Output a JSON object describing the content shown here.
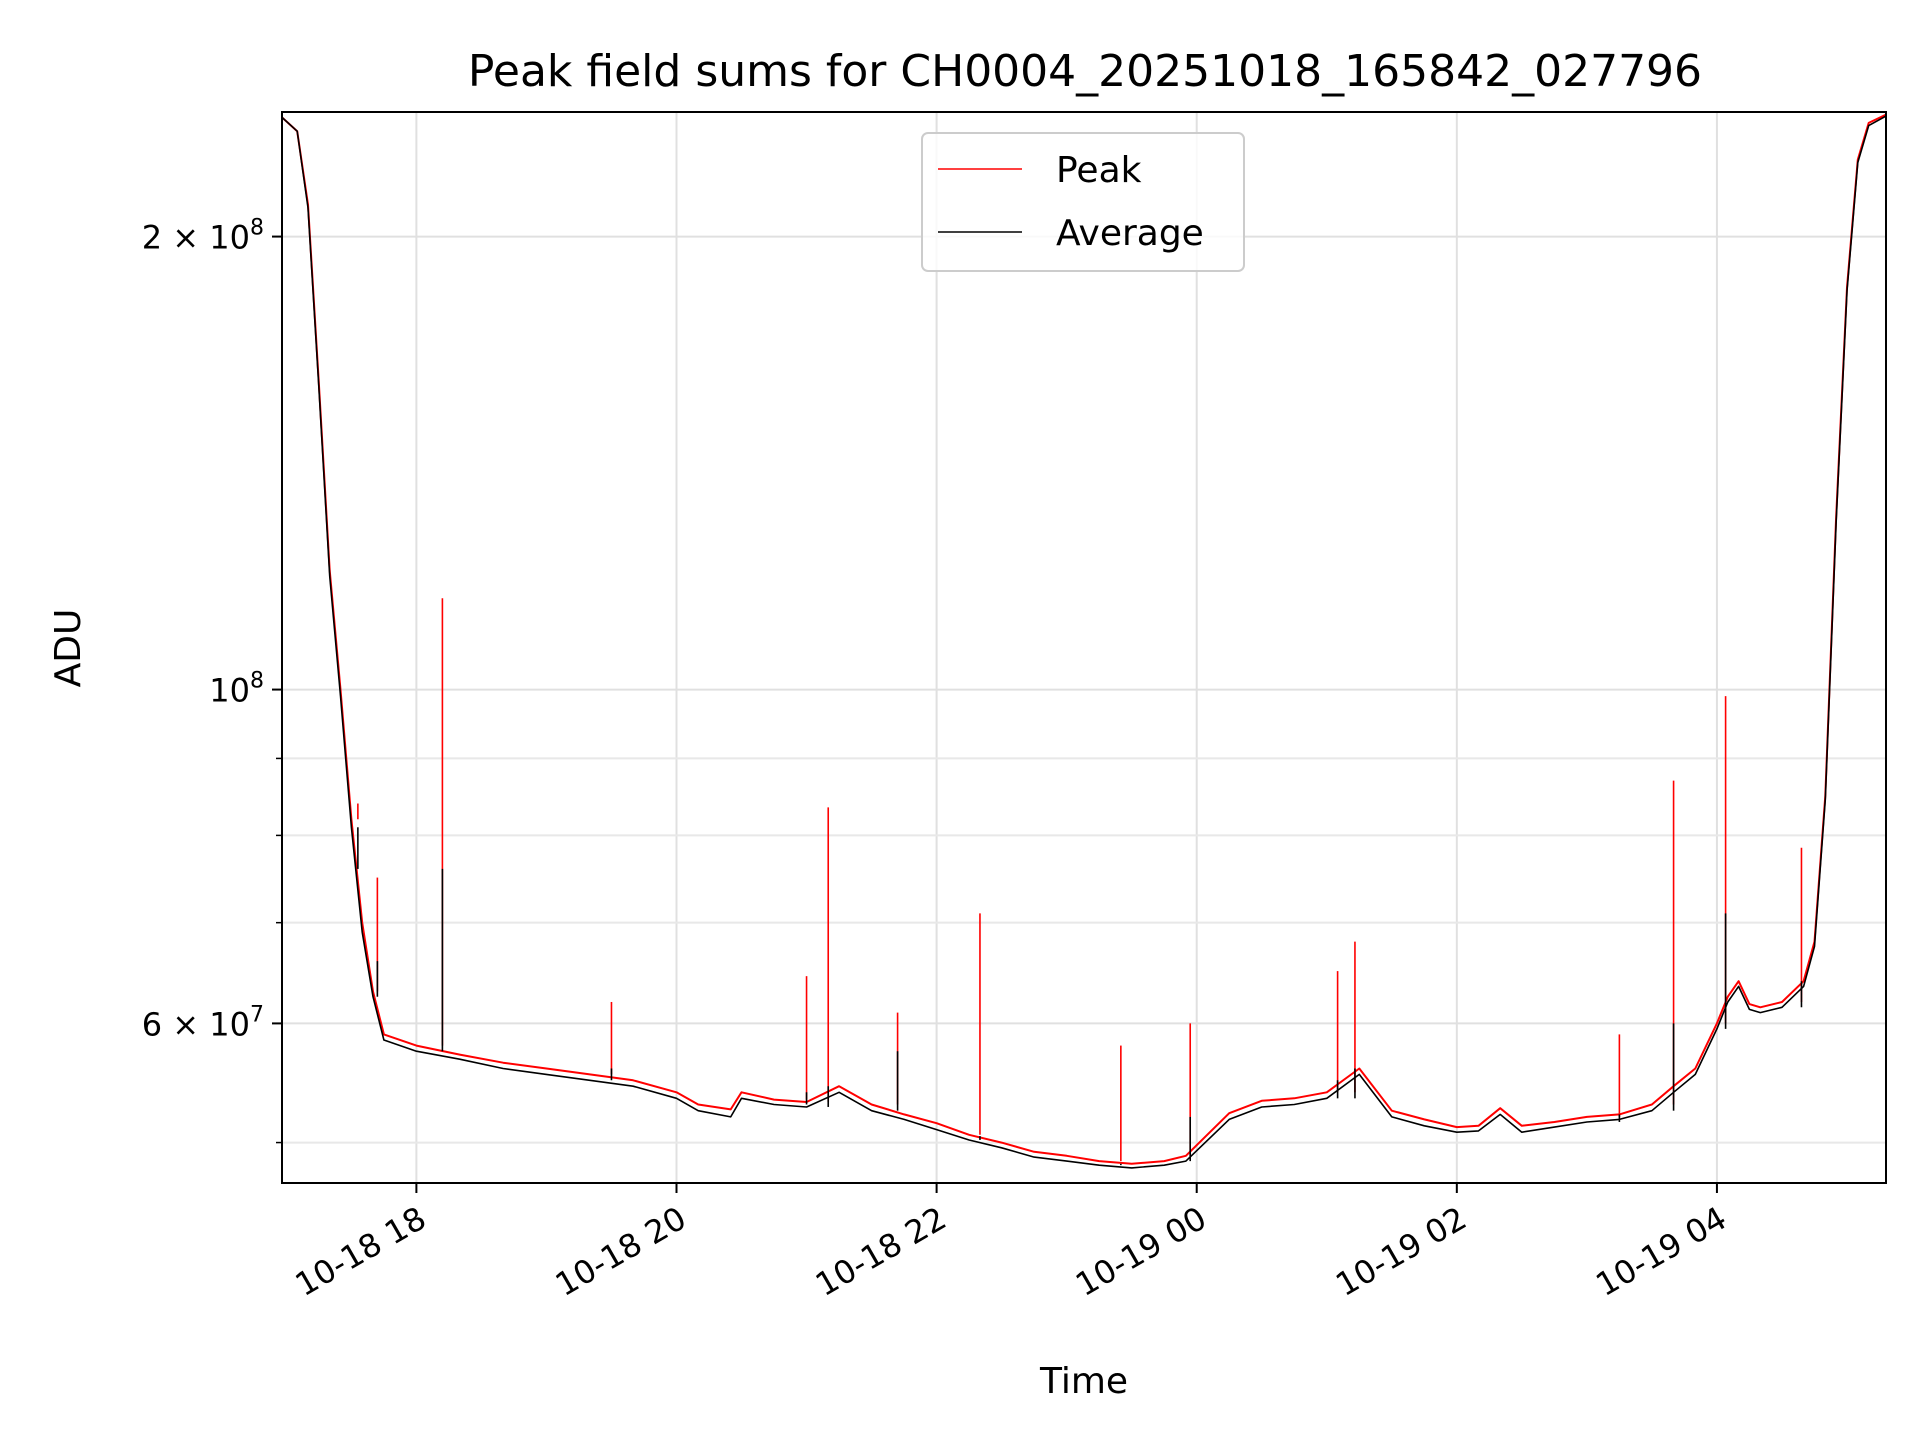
{
  "chart_data": {
    "type": "line",
    "title": "Peak field sums for CH0004_20251018_165842_027796",
    "xlabel": "Time",
    "ylabel": "ADU",
    "yscale": "log",
    "ylim": [
      47000000,
      242000000
    ],
    "xlim": [
      "2025-10-18 16:58",
      "2025-10-19 05:18"
    ],
    "grid": true,
    "legend_position": "top-center",
    "x_ticks": [
      {
        "value": "2025-10-18 18:00",
        "label": "10-18 18"
      },
      {
        "value": "2025-10-18 20:00",
        "label": "10-18 20"
      },
      {
        "value": "2025-10-18 22:00",
        "label": "10-18 22"
      },
      {
        "value": "2025-10-19 00:00",
        "label": "10-19 00"
      },
      {
        "value": "2025-10-19 02:00",
        "label": "10-19 02"
      },
      {
        "value": "2025-10-19 04:00",
        "label": "10-19 04"
      }
    ],
    "y_ticks": [
      {
        "value": 200000000,
        "mantissa": "2 × 10",
        "exponent": "8"
      },
      {
        "value": 100000000,
        "mantissa": "10",
        "exponent": "8"
      },
      {
        "value": 60000000,
        "mantissa": "6 × 10",
        "exponent": "7"
      }
    ],
    "y_minor_ticks": [
      50000000,
      70000000,
      80000000,
      90000000
    ],
    "series": [
      {
        "name": "Peak",
        "color": "#ff0000",
        "x": [
          "2025-10-18 16:58",
          "2025-10-18 17:05",
          "2025-10-18 17:10",
          "2025-10-18 17:15",
          "2025-10-18 17:20",
          "2025-10-18 17:25",
          "2025-10-18 17:30",
          "2025-10-18 17:35",
          "2025-10-18 17:40",
          "2025-10-18 17:45",
          "2025-10-18 18:00",
          "2025-10-18 18:20",
          "2025-10-18 18:40",
          "2025-10-18 19:00",
          "2025-10-18 19:20",
          "2025-10-18 19:40",
          "2025-10-18 20:00",
          "2025-10-18 20:10",
          "2025-10-18 20:25",
          "2025-10-18 20:30",
          "2025-10-18 20:45",
          "2025-10-18 21:00",
          "2025-10-18 21:15",
          "2025-10-18 21:30",
          "2025-10-18 21:45",
          "2025-10-18 22:00",
          "2025-10-18 22:15",
          "2025-10-18 22:30",
          "2025-10-18 22:45",
          "2025-10-18 23:00",
          "2025-10-18 23:15",
          "2025-10-18 23:30",
          "2025-10-18 23:45",
          "2025-10-18 23:55",
          "2025-10-19 00:15",
          "2025-10-19 00:30",
          "2025-10-19 00:45",
          "2025-10-19 01:00",
          "2025-10-19 01:15",
          "2025-10-19 01:30",
          "2025-10-19 01:45",
          "2025-10-19 02:00",
          "2025-10-19 02:10",
          "2025-10-19 02:20",
          "2025-10-19 02:30",
          "2025-10-19 02:45",
          "2025-10-19 03:00",
          "2025-10-19 03:15",
          "2025-10-19 03:30",
          "2025-10-19 03:40",
          "2025-10-19 03:50",
          "2025-10-19 04:00",
          "2025-10-19 04:05",
          "2025-10-19 04:10",
          "2025-10-19 04:15",
          "2025-10-19 04:20",
          "2025-10-19 04:30",
          "2025-10-19 04:40",
          "2025-10-19 04:45",
          "2025-10-19 04:50",
          "2025-10-19 04:55",
          "2025-10-19 05:00",
          "2025-10-19 05:05",
          "2025-10-19 05:10",
          "2025-10-19 05:18"
        ],
        "y": [
          240000000,
          235000000,
          210000000,
          160000000,
          120000000,
          100000000,
          82000000,
          70000000,
          63000000,
          59000000,
          58000000,
          57200000,
          56500000,
          56000000,
          55500000,
          55000000,
          54000000,
          53000000,
          52600000,
          54000000,
          53400000,
          53200000,
          54500000,
          53000000,
          52200000,
          51500000,
          50600000,
          50000000,
          49300000,
          49000000,
          48600000,
          48400000,
          48600000,
          49000000,
          52300000,
          53300000,
          53500000,
          54000000,
          56000000,
          52500000,
          51800000,
          51200000,
          51300000,
          52700000,
          51300000,
          51600000,
          52000000,
          52200000,
          53000000,
          54500000,
          56000000,
          60000000,
          62500000,
          64000000,
          61800000,
          61500000,
          62000000,
          64000000,
          68000000,
          85000000,
          130000000,
          185000000,
          225000000,
          238000000,
          241000000
        ]
      },
      {
        "name": "Average",
        "color": "#000000",
        "x": [
          "2025-10-18 16:58",
          "2025-10-18 17:05",
          "2025-10-18 17:10",
          "2025-10-18 17:15",
          "2025-10-18 17:20",
          "2025-10-18 17:25",
          "2025-10-18 17:30",
          "2025-10-18 17:35",
          "2025-10-18 17:40",
          "2025-10-18 17:45",
          "2025-10-18 18:00",
          "2025-10-18 18:20",
          "2025-10-18 18:40",
          "2025-10-18 19:00",
          "2025-10-18 19:20",
          "2025-10-18 19:40",
          "2025-10-18 20:00",
          "2025-10-18 20:10",
          "2025-10-18 20:25",
          "2025-10-18 20:30",
          "2025-10-18 20:45",
          "2025-10-18 21:00",
          "2025-10-18 21:15",
          "2025-10-18 21:30",
          "2025-10-18 21:45",
          "2025-10-18 22:00",
          "2025-10-18 22:15",
          "2025-10-18 22:30",
          "2025-10-18 22:45",
          "2025-10-18 23:00",
          "2025-10-18 23:15",
          "2025-10-18 23:30",
          "2025-10-18 23:45",
          "2025-10-18 23:55",
          "2025-10-19 00:15",
          "2025-10-19 00:30",
          "2025-10-19 00:45",
          "2025-10-19 01:00",
          "2025-10-19 01:15",
          "2025-10-19 01:30",
          "2025-10-19 01:45",
          "2025-10-19 02:00",
          "2025-10-19 02:10",
          "2025-10-19 02:20",
          "2025-10-19 02:30",
          "2025-10-19 02:45",
          "2025-10-19 03:00",
          "2025-10-19 03:15",
          "2025-10-19 03:30",
          "2025-10-19 03:40",
          "2025-10-19 03:50",
          "2025-10-19 04:00",
          "2025-10-19 04:05",
          "2025-10-19 04:10",
          "2025-10-19 04:15",
          "2025-10-19 04:20",
          "2025-10-19 04:30",
          "2025-10-19 04:40",
          "2025-10-19 04:45",
          "2025-10-19 04:50",
          "2025-10-19 04:55",
          "2025-10-19 05:00",
          "2025-10-19 05:05",
          "2025-10-19 05:10",
          "2025-10-19 05:18"
        ],
        "y": [
          240000000,
          235000000,
          209000000,
          159000000,
          119000000,
          99000000,
          81000000,
          69000000,
          62500000,
          58500000,
          57500000,
          56800000,
          56000000,
          55500000,
          55000000,
          54500000,
          53500000,
          52500000,
          52000000,
          53500000,
          53000000,
          52800000,
          54000000,
          52500000,
          51800000,
          51000000,
          50200000,
          49600000,
          48900000,
          48600000,
          48300000,
          48100000,
          48300000,
          48600000,
          51800000,
          52800000,
          53000000,
          53500000,
          55500000,
          52000000,
          51300000,
          50800000,
          50900000,
          52200000,
          50800000,
          51200000,
          51600000,
          51800000,
          52500000,
          54000000,
          55500000,
          59500000,
          62000000,
          63500000,
          61300000,
          61000000,
          61500000,
          63500000,
          67500000,
          84500000,
          129000000,
          184000000,
          224000000,
          237000000,
          240500000
        ]
      }
    ],
    "spikes": [
      {
        "x": "2025-10-18 17:33",
        "peak": 84000000,
        "average": 76000000
      },
      {
        "x": "2025-10-18 17:42",
        "peak": 75000000,
        "average": 66000000
      },
      {
        "x": "2025-10-18 18:12",
        "peak": 115000000,
        "average": 76000000
      },
      {
        "x": "2025-10-18 19:30",
        "peak": 62000000,
        "average": 56000000
      },
      {
        "x": "2025-10-18 21:00",
        "peak": 64500000,
        "average": 54000000
      },
      {
        "x": "2025-10-18 21:10",
        "peak": 83500000,
        "average": 54500000
      },
      {
        "x": "2025-10-18 21:42",
        "peak": 61000000,
        "average": 57500000
      },
      {
        "x": "2025-10-18 22:20",
        "peak": 71000000,
        "average": 50500000
      },
      {
        "x": "2025-10-18 23:25",
        "peak": 58000000,
        "average": 48400000
      },
      {
        "x": "2025-10-18 23:57",
        "peak": 60000000,
        "average": 52000000
      },
      {
        "x": "2025-10-19 01:05",
        "peak": 65000000,
        "average": 55000000
      },
      {
        "x": "2025-10-19 01:13",
        "peak": 68000000,
        "average": 56000000
      },
      {
        "x": "2025-10-19 03:15",
        "peak": 59000000,
        "average": 52200000
      },
      {
        "x": "2025-10-19 03:40",
        "peak": 87000000,
        "average": 60000000
      },
      {
        "x": "2025-10-19 04:04",
        "peak": 99000000,
        "average": 71000000
      },
      {
        "x": "2025-10-19 04:39",
        "peak": 78500000,
        "average": 64000000
      }
    ]
  }
}
